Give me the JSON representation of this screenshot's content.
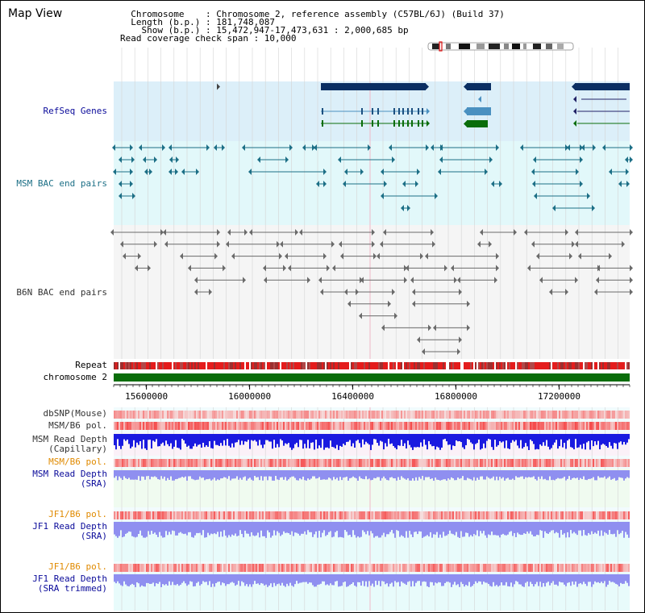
{
  "title": "Map View",
  "info": {
    "lines": [
      "  Chromosome    : Chromosome 2, reference assembly (C57BL/6J) (Build 37)",
      "  Length (b.p.) : 181,748,087",
      "    Show (b.p.) : 15,472,947-17,473,631 : 2,000,685 bp",
      "Read coverage check span : 10,000"
    ]
  },
  "tracks": {
    "refseq": "RefSeq Genes",
    "msm_bac": "MSM BAC end pairs",
    "b6n_bac": "B6N BAC end pairs",
    "repeat": "Repeat",
    "chromosome": "chromosome 2",
    "dbsnp": "dbSNP(Mouse)",
    "msm_pol": "MSM/B6 pol.",
    "msm_depth_cap": [
      "MSM Read Depth",
      "(Capillary)"
    ],
    "msm_pol_sra": "MSM/B6 pol.",
    "msm_depth_sra": [
      "MSM Read Depth",
      "(SRA)"
    ],
    "jf1_pol": "JF1/B6 pol.",
    "jf1_depth_sra": [
      "JF1 Read Depth",
      "(SRA)"
    ],
    "jf1_pol_trim": "JF1/B6 pol.",
    "jf1_depth_trim": [
      "JF1 Read Depth",
      "(SRA trimmed)"
    ]
  },
  "axis": {
    "ticks": [
      "15600000",
      "16000000",
      "16400000",
      "16800000",
      "17200000"
    ],
    "tick_values": [
      15600000,
      16000000,
      16400000,
      16800000,
      17200000
    ],
    "range": [
      15472947,
      17473631
    ]
  },
  "colors": {
    "refseq_bg": "#dceff9",
    "msm_bg": "#e2f8fa",
    "b6n_bg": "#f5f5f5",
    "refseq_dark": "#0b2f63",
    "refseq_mid": "#4a90c0",
    "refseq_green": "#0a6d0a",
    "msm_feature": "#1c6f86",
    "b6n_feature": "#6a6a6a",
    "chromosome": "#0a6d0a",
    "label_dark": "#333333",
    "label_blue": "#0a0a9a",
    "label_orange": "#e08a00",
    "label_teal": "#1c6f86",
    "depth_cap": "#1a1ae0",
    "depth_sra": "#8f8ff0"
  }
}
